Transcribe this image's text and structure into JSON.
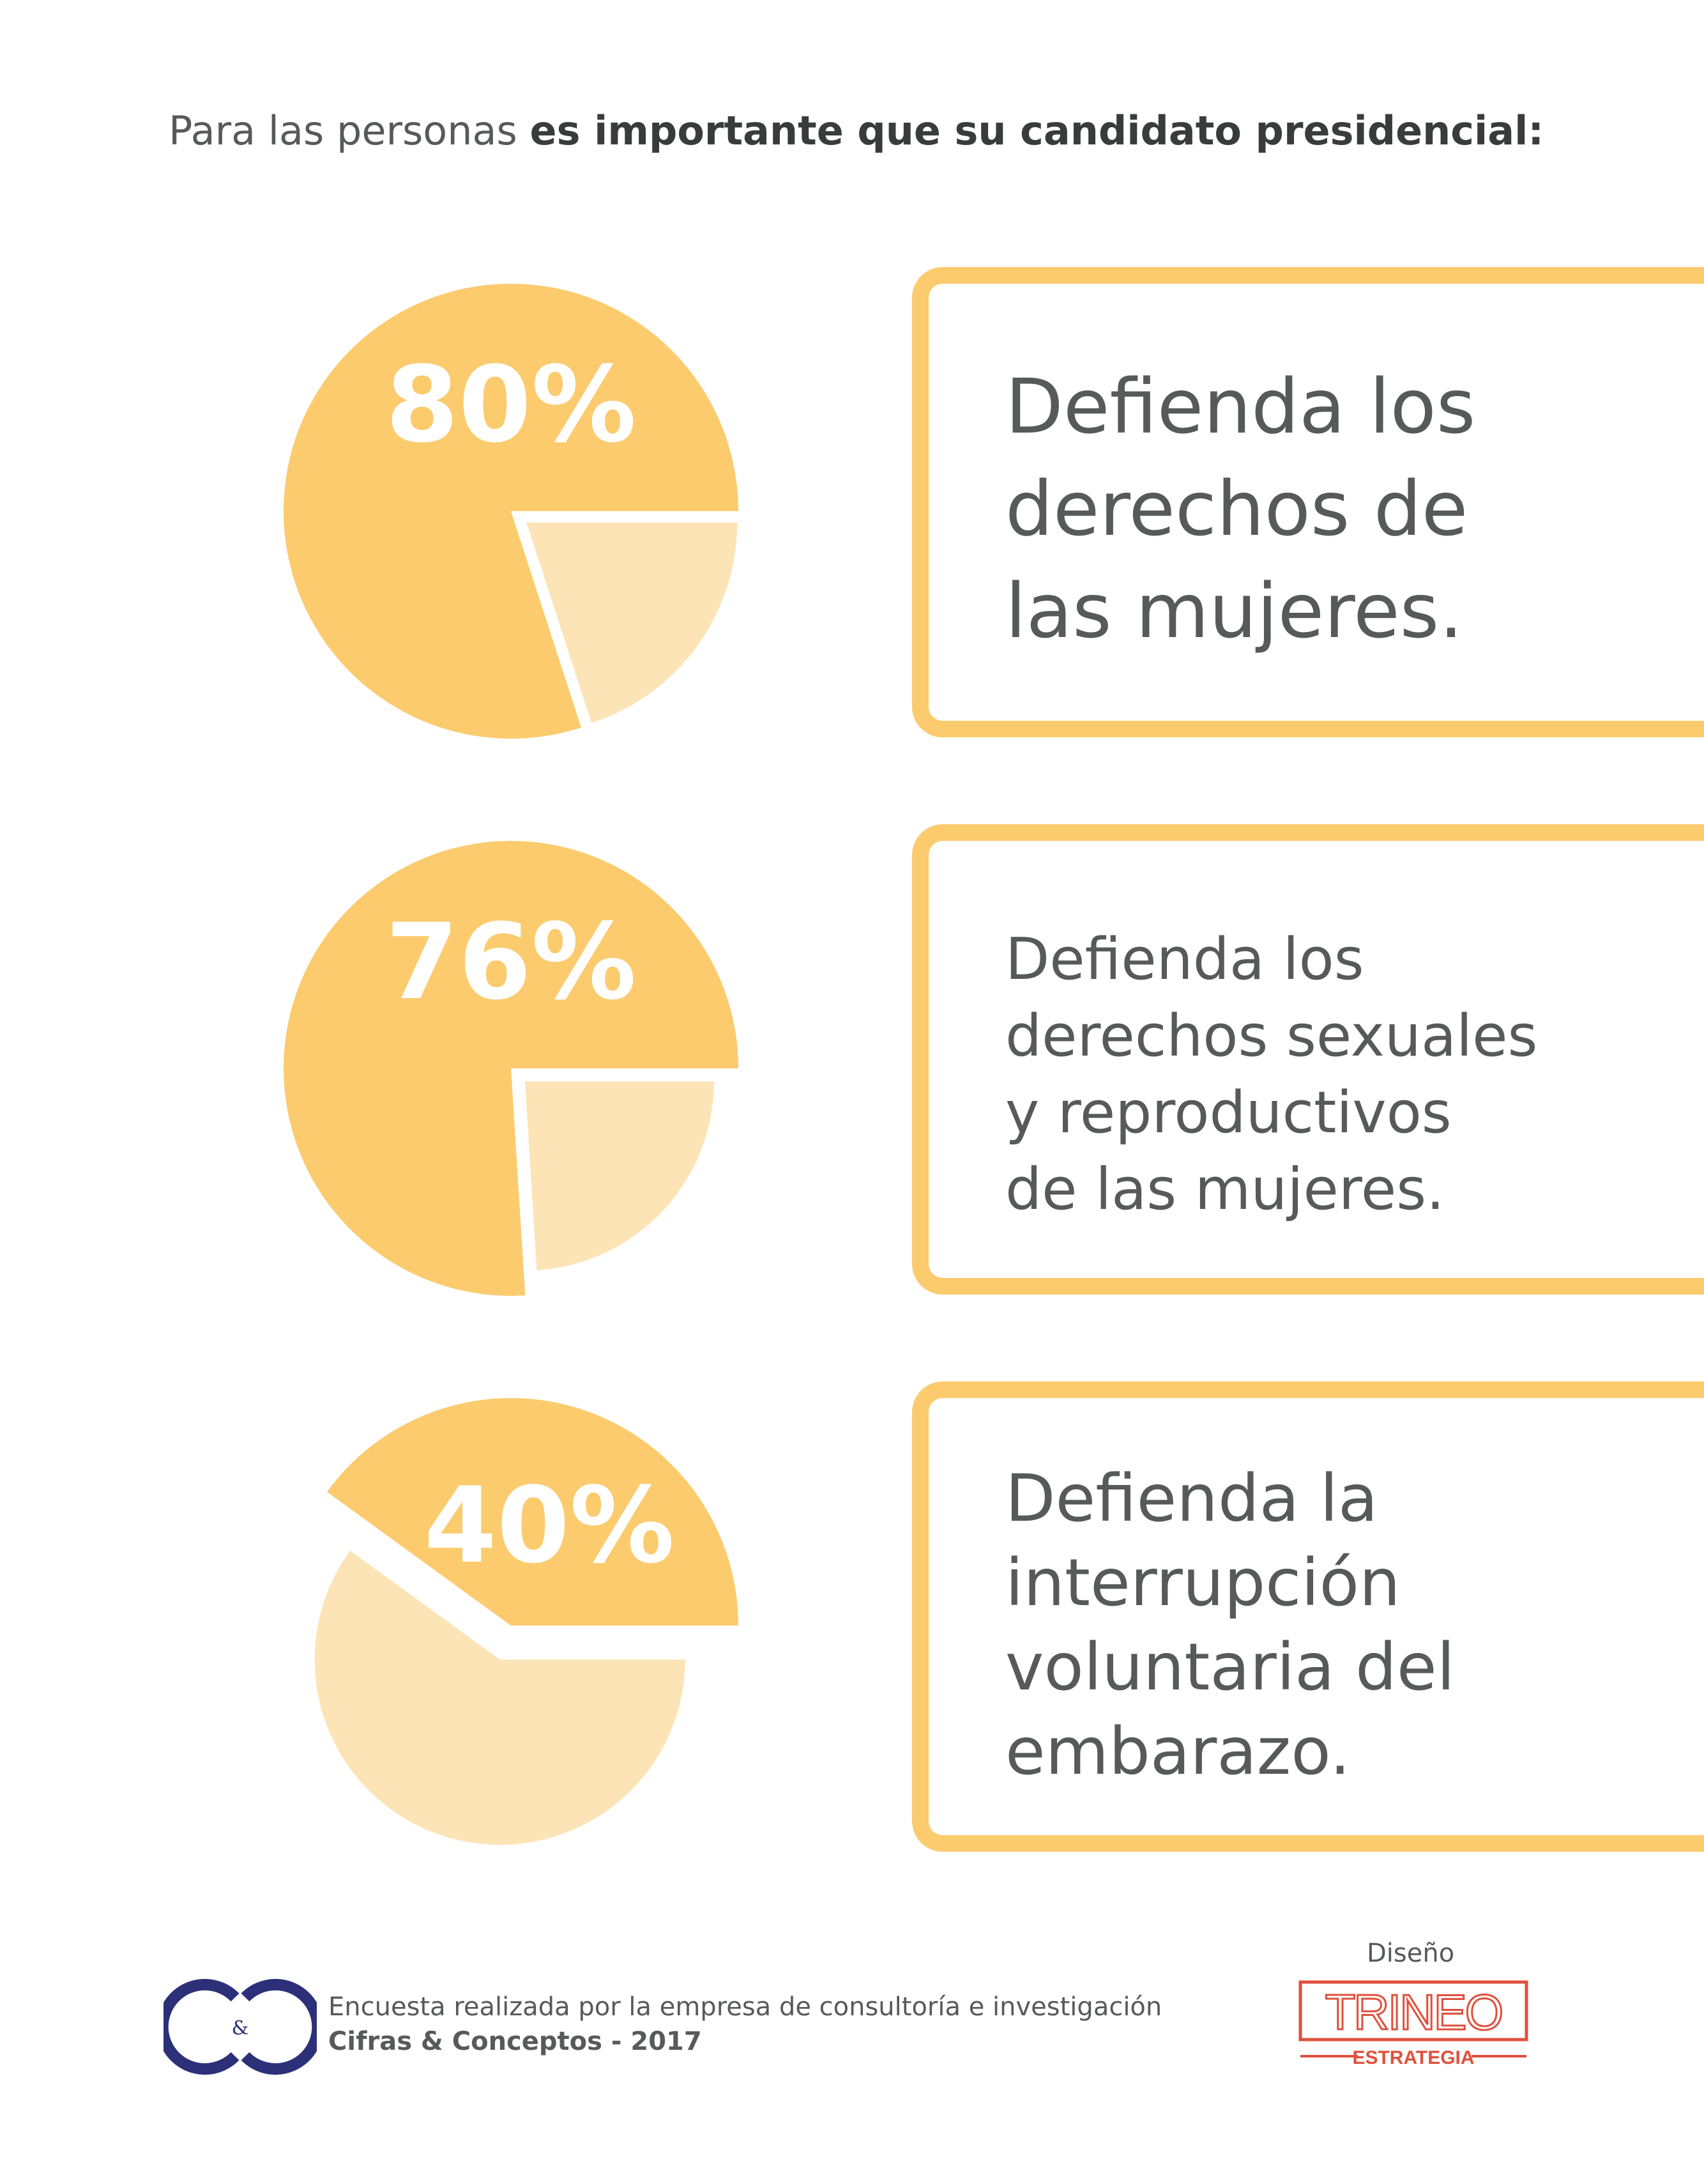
{
  "heading": {
    "normal": "Para las personas ",
    "bold": "es importante que su candidato presidencial:"
  },
  "colors": {
    "accent": "#fbcb6e",
    "accent_light": "#fce4b6",
    "text": "#58595b",
    "logo_blue": "#2b3079",
    "logo_red": "#e0503d"
  },
  "chart_data": [
    {
      "type": "pie",
      "values": [
        80,
        20
      ],
      "label": "80%",
      "caption_lines": [
        "Defienda los",
        "derechos de",
        "las mujeres."
      ]
    },
    {
      "type": "pie",
      "values": [
        76,
        24
      ],
      "label": "76%",
      "caption_lines": [
        "Defienda los",
        "derechos sexuales",
        "y reproductivos",
        "de las mujeres."
      ]
    },
    {
      "type": "pie",
      "values": [
        40,
        60
      ],
      "label": "40%",
      "caption_lines": [
        "Defienda la",
        "interrupción",
        "voluntaria del",
        "embarazo."
      ]
    }
  ],
  "footer": {
    "logo_text": "&",
    "line1": "Encuesta realizada por la empresa de consultoría e investigación",
    "line2": "Cifras & Conceptos - 2017",
    "design_label": "Diseño",
    "design_brand": "TRINEO",
    "design_sub": "ESTRATEGIA"
  }
}
